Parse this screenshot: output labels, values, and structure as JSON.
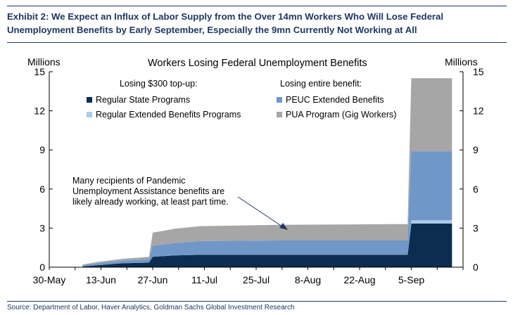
{
  "exhibit_title": "Exhibit 2: We Expect an Influx of Labor Supply from the Over 14mn Workers Who Will Lose Federal Unemployment Benefits by Early September, Especially the 9mn Currently Not Working at All",
  "source": "Source: Department of Labor, Haver Analytics, Goldman Sachs Global Investment Research",
  "colors": {
    "regular_state": "#0b2d4f",
    "regular_extended": "#a9cce8",
    "peuc": "#6f98c9",
    "pua": "#a6a6a6",
    "title_navy": "#1f3864"
  },
  "chart_data": {
    "type": "area",
    "title": "Workers Losing Federal Unemployment Benefits",
    "ylabel_left": "Millions",
    "ylabel_right": "Millions",
    "ylim": [
      0,
      15
    ],
    "yticks": [
      0,
      3,
      6,
      9,
      12,
      15
    ],
    "xlim": [
      "2021-05-30",
      "2021-09-19"
    ],
    "xticks": [
      "30-May",
      "13-Jun",
      "27-Jun",
      "11-Jul",
      "25-Jul",
      "8-Aug",
      "22-Aug",
      "5-Sep"
    ],
    "xtick_dates": [
      "2021-05-30",
      "2021-06-13",
      "2021-06-27",
      "2021-07-11",
      "2021-07-25",
      "2021-08-08",
      "2021-08-22",
      "2021-09-05"
    ],
    "grid": false,
    "legend": {
      "group1_title": "Losing $300 top-up:",
      "group2_title": "Losing entire benefit:",
      "items": [
        {
          "label": "Regular State Programs",
          "color": "#0b2d4f"
        },
        {
          "label": "Regular Extended Benefits Programs",
          "color": "#a9cce8"
        },
        {
          "label": "PEUC Extended Benefits",
          "color": "#6f98c9"
        },
        {
          "label": "PUA Program (Gig Workers)",
          "color": "#a6a6a6"
        }
      ]
    },
    "annotation": "Many recipients of Pandemic Unemployment Assistance benefits are likely already working, at least part time.",
    "dates": [
      "2021-06-08",
      "2021-06-12",
      "2021-06-19",
      "2021-06-26",
      "2021-06-27",
      "2021-06-30",
      "2021-07-03",
      "2021-07-10",
      "2021-07-31",
      "2021-08-31",
      "2021-09-04",
      "2021-09-05",
      "2021-09-16"
    ],
    "series": [
      {
        "name": "Regular State Programs",
        "color": "#0b2d4f",
        "values": [
          0.05,
          0.15,
          0.3,
          0.35,
          0.8,
          0.85,
          0.9,
          0.95,
          0.95,
          0.95,
          0.95,
          3.35,
          3.35
        ]
      },
      {
        "name": "Regular Extended Benefits Programs",
        "color": "#a9cce8",
        "values": [
          0.0,
          0.0,
          0.0,
          0.0,
          0.0,
          0.0,
          0.0,
          0.0,
          0.0,
          0.0,
          0.0,
          0.25,
          0.25
        ]
      },
      {
        "name": "PEUC Extended Benefits",
        "color": "#6f98c9",
        "values": [
          0.1,
          0.15,
          0.2,
          0.25,
          0.85,
          0.9,
          0.95,
          1.05,
          1.1,
          1.1,
          1.1,
          5.3,
          5.3
        ]
      },
      {
        "name": "PUA Program (Gig Workers)",
        "color": "#a6a6a6",
        "values": [
          0.05,
          0.1,
          0.15,
          0.2,
          1.0,
          1.05,
          1.1,
          1.15,
          1.2,
          1.25,
          1.25,
          5.6,
          5.6
        ]
      }
    ]
  }
}
